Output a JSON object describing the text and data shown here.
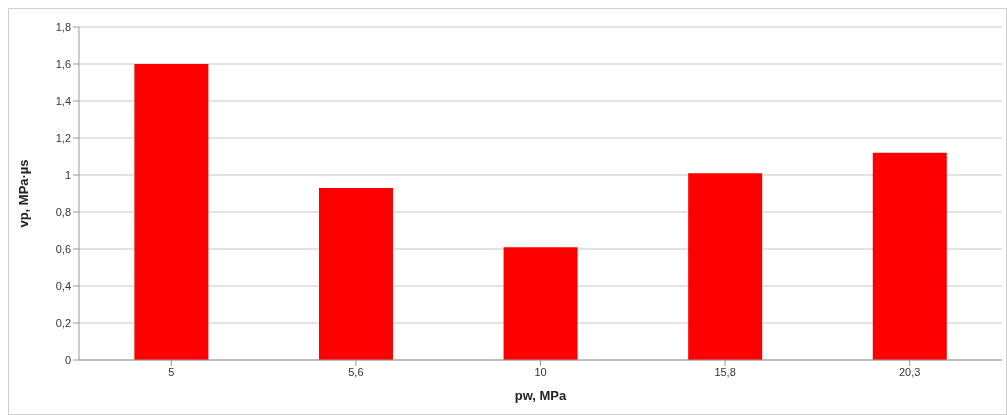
{
  "chart_data": {
    "type": "bar",
    "xlabel": "pw, MPa",
    "ylabel": "vp, MPa·µs",
    "categories": [
      "5",
      "5,6",
      "10",
      "15,8",
      "20,3"
    ],
    "values": [
      1.6,
      0.93,
      0.61,
      1.01,
      1.12
    ],
    "color": "#ff0000",
    "ylim": [
      0,
      1.8
    ],
    "yticks": [
      0,
      {
        "value": 0.2,
        "label": "0,2"
      },
      {
        "value": 0.4,
        "label": "0,4"
      },
      {
        "value": 0.6,
        "label": "0,6"
      },
      {
        "value": 0.8,
        "label": "0,8"
      },
      1,
      {
        "value": 1.2,
        "label": "1,2"
      },
      {
        "value": 1.4,
        "label": "1,4"
      },
      {
        "value": 1.6,
        "label": "1,6"
      },
      {
        "value": 1.8,
        "label": "1,8"
      }
    ],
    "grid": "y"
  }
}
